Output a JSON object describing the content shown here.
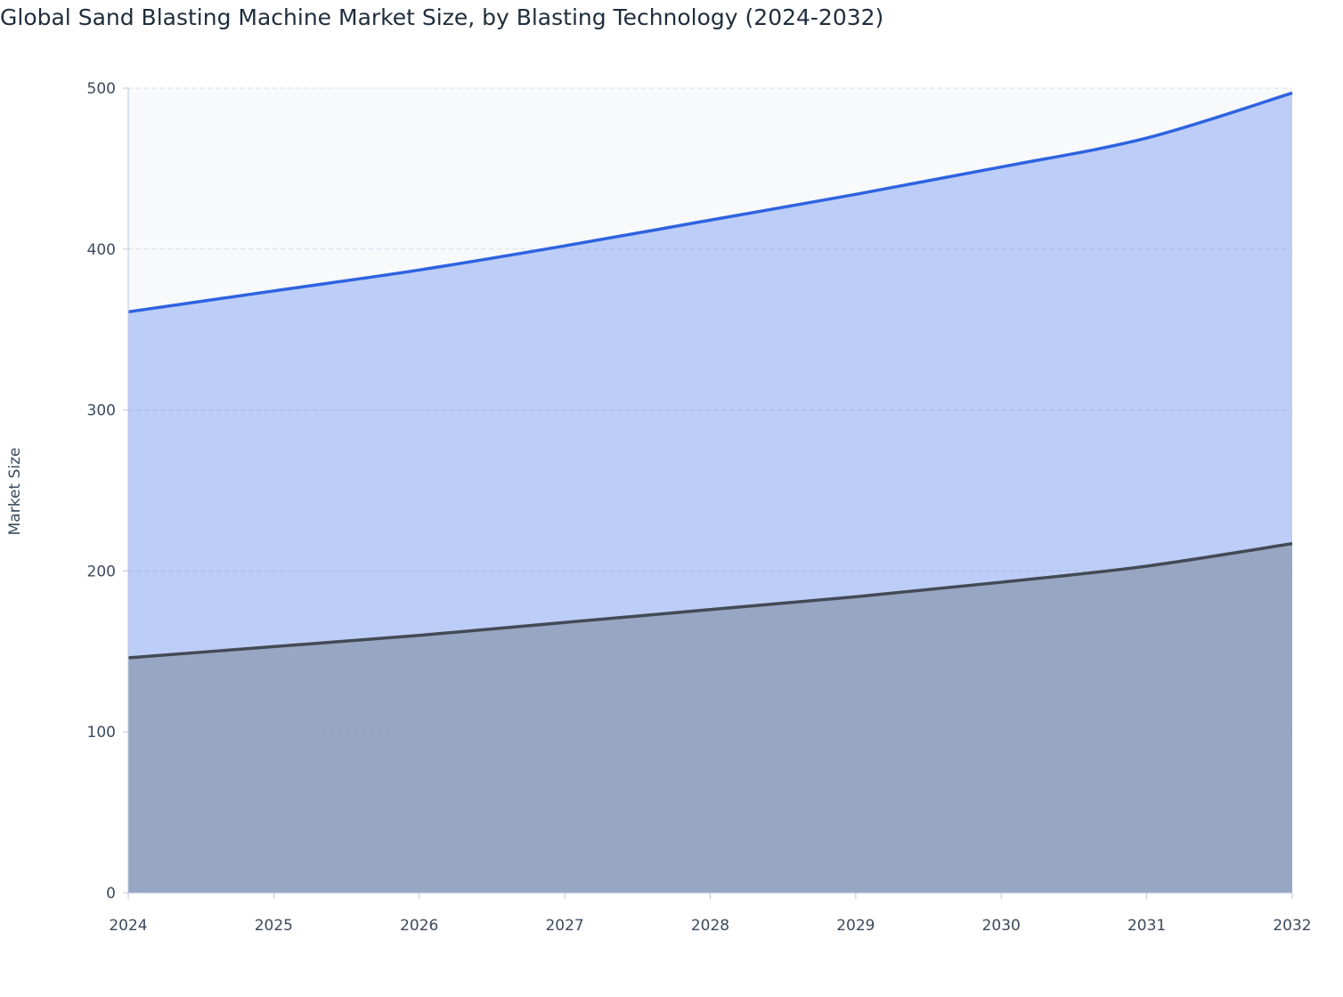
{
  "chart_data": {
    "type": "stacked_area",
    "title": "Global Sand Blasting Machine Market Size, by Blasting Technology (2024-2032)",
    "y_label": "Market Size",
    "x": [
      2024,
      2025,
      2026,
      2027,
      2028,
      2029,
      2030,
      2031,
      2032
    ],
    "series": [
      {
        "color": "#444a55",
        "fill": "#97a6c2",
        "values": [
          146,
          153,
          160,
          168,
          176,
          184,
          193,
          203,
          217
        ]
      },
      {
        "color": "#2e63e0",
        "fill": "#bccdf7",
        "values": [
          215,
          221,
          227,
          234,
          242,
          250,
          258,
          266,
          280
        ]
      }
    ],
    "xlim": [
      2024,
      2032
    ],
    "xticks": [
      2024,
      2025,
      2026,
      2027,
      2028,
      2029,
      2030,
      2031,
      2032
    ],
    "ylim": [
      0,
      500
    ],
    "yticks": [
      0,
      100,
      200,
      300,
      400,
      500
    ],
    "grid": true
  }
}
